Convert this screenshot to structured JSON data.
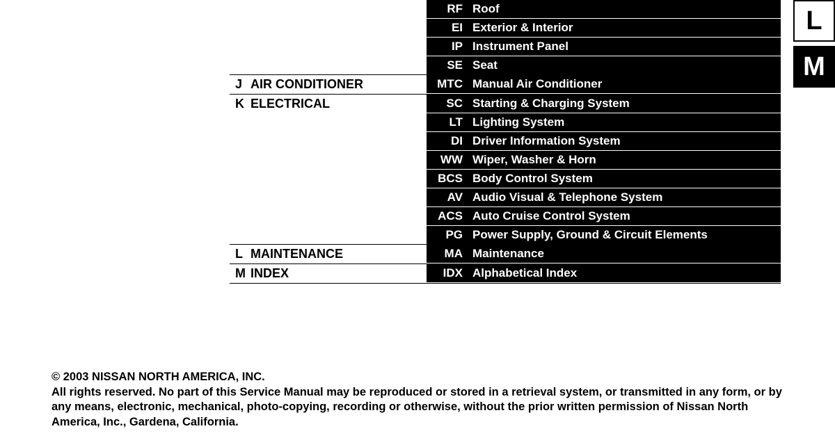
{
  "sections": [
    {
      "letter": "",
      "title": "",
      "subs": [
        {
          "code": "RF",
          "name": "Roof"
        },
        {
          "code": "EI",
          "name": "Exterior & Interior"
        },
        {
          "code": "IP",
          "name": "Instrument Panel"
        },
        {
          "code": "SE",
          "name": "Seat"
        }
      ]
    },
    {
      "letter": "J",
      "title": "AIR CONDITIONER",
      "subs": [
        {
          "code": "MTC",
          "name": "Manual Air Conditioner"
        }
      ]
    },
    {
      "letter": "K",
      "title": "ELECTRICAL",
      "subs": [
        {
          "code": "SC",
          "name": "Starting & Charging System"
        },
        {
          "code": "LT",
          "name": "Lighting System"
        },
        {
          "code": "DI",
          "name": "Driver Information System"
        },
        {
          "code": "WW",
          "name": "Wiper, Washer & Horn"
        },
        {
          "code": "BCS",
          "name": "Body Control System"
        },
        {
          "code": "AV",
          "name": "Audio Visual & Telephone System"
        },
        {
          "code": "ACS",
          "name": "Auto Cruise Control System"
        },
        {
          "code": "PG",
          "name": "Power Supply, Ground & Circuit Elements"
        }
      ]
    },
    {
      "letter": "L",
      "title": "MAINTENANCE",
      "subs": [
        {
          "code": "MA",
          "name": "Maintenance"
        }
      ]
    },
    {
      "letter": "M",
      "title": "INDEX",
      "subs": [
        {
          "code": "IDX",
          "name": "Alphabetical Index"
        }
      ]
    }
  ],
  "sideTabs": [
    {
      "label": "L",
      "style": "open"
    },
    {
      "label": "M",
      "style": "solid"
    }
  ],
  "footer": {
    "copyright": "© 2003 NISSAN NORTH AMERICA, INC.",
    "rights": "All rights reserved. No part of this Service Manual may be reproduced or stored in a retrieval system, or transmitted in any form, or by any means, electronic, mechanical, photo-copying, recording or otherwise, without the prior written permission of Nissan North America, Inc., Gardena, California."
  },
  "colors": {
    "bg": "#ffffff",
    "ink": "#000000"
  }
}
